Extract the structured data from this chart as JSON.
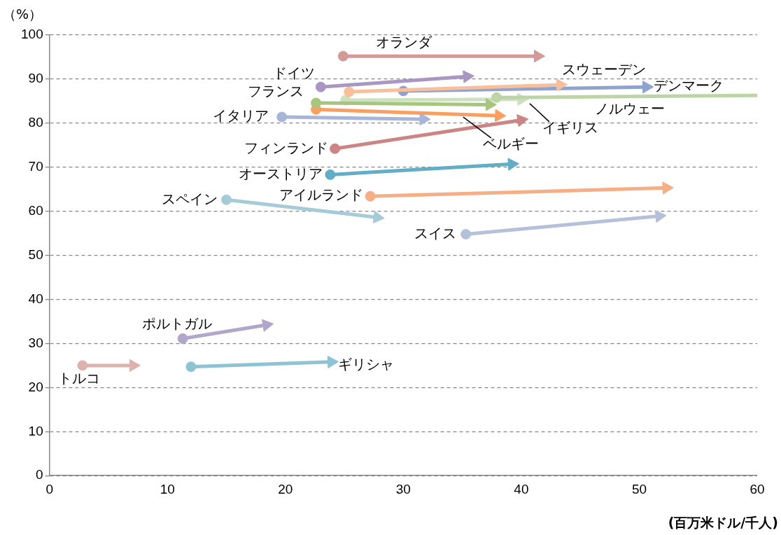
{
  "chart_data": {
    "type": "line",
    "xlabel": "(百万米ドル/千人)",
    "ylabel": "（%）",
    "xlim": [
      0,
      60
    ],
    "xticks": [
      0,
      10,
      20,
      30,
      40,
      50,
      60
    ],
    "ylim": [
      0,
      100
    ],
    "yticks": [
      0,
      10,
      20,
      30,
      40,
      50,
      60,
      70,
      80,
      90,
      100
    ],
    "grid": "y",
    "legend": false,
    "marker": "circle",
    "line_style": "solid",
    "series": [
      {
        "name": "オランダ",
        "color": "#d49a9a",
        "x": [
          24.9,
          41.4
        ],
        "values": [
          95.2,
          95.2
        ]
      },
      {
        "name": "ドイツ",
        "color": "#a996c2",
        "x": [
          23.0,
          35.4
        ],
        "values": [
          88.2,
          90.6
        ]
      },
      {
        "name": "スウェーデン",
        "color": "#f8bf9c",
        "x": [
          25.4,
          43.3
        ],
        "values": [
          87.1,
          88.7
        ]
      },
      {
        "name": "デンマーク",
        "color": "#8ea4cf",
        "x": [
          30.0,
          50.6
        ],
        "values": [
          87.3,
          88.2
        ]
      },
      {
        "name": "ノルウェー",
        "color": "#bcd4a6",
        "x": [
          37.9,
          60
        ],
        "values": [
          85.8,
          86.3
        ]
      },
      {
        "name": "フランス",
        "color": "#a6c57e",
        "x": [
          22.6,
          37.3
        ],
        "values": [
          84.6,
          84.2
        ]
      },
      {
        "name": "イギリス",
        "color": "#cde0bf",
        "x": [
          25.1,
          40.0
        ],
        "values": [
          85.2,
          85.4
        ]
      },
      {
        "name": "ベルギー",
        "color": "#f7a062",
        "x": [
          22.6,
          38.1
        ],
        "values": [
          83.1,
          81.7
        ]
      },
      {
        "name": "イタリア",
        "color": "#a7b5d8",
        "x": [
          19.7,
          31.7
        ],
        "values": [
          81.4,
          80.9
        ]
      },
      {
        "name": "フィンランド",
        "color": "#cc8584",
        "x": [
          24.2,
          40.0
        ],
        "values": [
          74.2,
          80.7
        ]
      },
      {
        "name": "オーストリア",
        "color": "#63adc6",
        "x": [
          23.8,
          39.2
        ],
        "values": [
          68.3,
          70.7
        ]
      },
      {
        "name": "アイルランド",
        "color": "#f5ae86",
        "x": [
          27.2,
          52.3
        ],
        "values": [
          63.4,
          65.3
        ]
      },
      {
        "name": "スペイン",
        "color": "#a5cbd7",
        "x": [
          15.0,
          27.8
        ],
        "values": [
          62.6,
          58.6
        ]
      },
      {
        "name": "スイス",
        "color": "#b5c1db",
        "x": [
          35.3,
          51.7
        ],
        "values": [
          54.8,
          58.9
        ]
      },
      {
        "name": "ポルトガル",
        "color": "#b3a7c9",
        "x": [
          11.3,
          18.4
        ],
        "values": [
          31.1,
          34.2
        ]
      },
      {
        "name": "ギリシャ",
        "color": "#8ec3d4",
        "x": [
          12.0,
          23.9
        ],
        "values": [
          24.7,
          25.8
        ]
      },
      {
        "name": "トルコ",
        "color": "#ddb1ae",
        "x": [
          2.8,
          7.1
        ],
        "values": [
          25.0,
          25.0
        ]
      }
    ]
  }
}
